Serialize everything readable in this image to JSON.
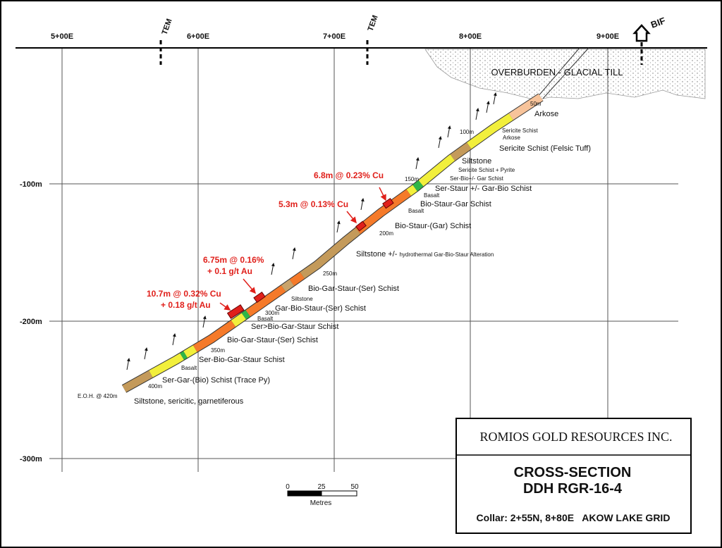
{
  "easting_labels": [
    "5+00E",
    "6+00E",
    "7+00E",
    "8+00E",
    "9+00E"
  ],
  "depth_labels": [
    "-100m",
    "-200m",
    "-300m"
  ],
  "markers": {
    "tem": [
      "TEM",
      "TEM"
    ],
    "bif": "BIF"
  },
  "overburden": "OVERBURDEN - GLACIAL TILL",
  "depth_marks": [
    "50m",
    "100m",
    "150m",
    "200m",
    "250m",
    "300m",
    "350m",
    "400m"
  ],
  "eoh": "E.O.H. @ 420m",
  "lithology": [
    "Arkose",
    "Sericite Schist",
    "Arkose",
    "Sericite Schist (Felsic Tuff)",
    "Siltstone",
    "Sericite Schist + Pyrite",
    "Ser-Bio+/- Gar Schist",
    "Ser-Staur +/- Gar-Bio Schist",
    "Basalt",
    "Bio-Staur-Gar Schist",
    "Basalt",
    "Bio-Staur-(Gar) Schist",
    "Siltstone +/-",
    "hydrothermal Gar-Bio-Staur Alteration",
    "Bio-Gar-Staur-(Ser) Schist",
    "Siltstone",
    "Gar-Bio-Staur-(Ser) Schist",
    "Basalt",
    "Ser>Bio-Gar-Staur Schist",
    "Bio-Gar-Staur-(Ser) Schist",
    "Ser-Bio-Gar-Staur Schist",
    "Basalt",
    "Ser-Gar-(Bio) Schist (Trace Py)",
    "Siltstone, sericitic, garnetiferous"
  ],
  "intercepts": [
    [
      "6.8m @ 0.23% Cu"
    ],
    [
      "5.3m @ 0.13% Cu"
    ],
    [
      "6.75m @ 0.16%",
      "+ 0.1 g/t Au"
    ],
    [
      "10.7m @ 0.32% Cu",
      "+ 0.18 g/t Au"
    ]
  ],
  "scale_bar": {
    "ticks": [
      "0",
      "25",
      "50"
    ],
    "unit": "Metres"
  },
  "title_block": {
    "company": "ROMIOS GOLD RESOURCES INC.",
    "title": [
      "CROSS-SECTION",
      "DDH RGR-16-4"
    ],
    "collar": "Collar: 2+55N, 8+80E   AKOW LAKE GRID"
  }
}
